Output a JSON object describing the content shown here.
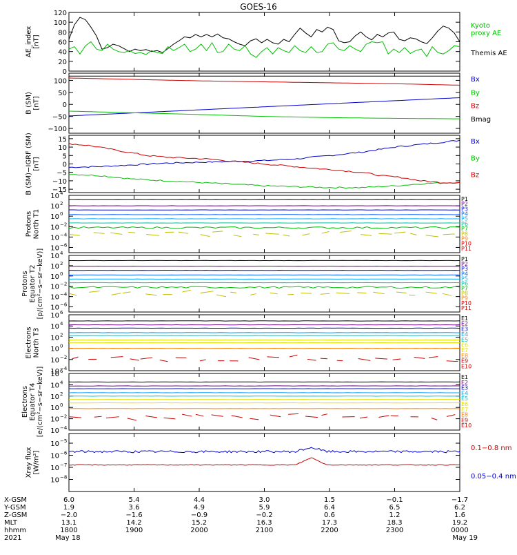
{
  "title": "GOES-16",
  "chart_data": [
    {
      "type": "line",
      "panel": "ae-index",
      "ylabel": [
        "AE_index",
        "[nT]"
      ],
      "ylim": [
        0,
        120
      ],
      "ytick_values": [
        0,
        20,
        40,
        60,
        80,
        100,
        120
      ],
      "ytick_labels": [
        "0",
        "20",
        "40",
        "60",
        "80",
        "100",
        "120"
      ],
      "legend": [
        {
          "label": "Kyoto",
          "color": "#00c000"
        },
        {
          "label": "proxy AE",
          "color": "#00c000"
        },
        {
          "label": "Themis AE",
          "color": "#000000"
        }
      ],
      "series": [
        {
          "name": "Themis AE",
          "color": "#000000",
          "values": [
            65,
            95,
            110,
            105,
            90,
            72,
            45,
            48,
            55,
            52,
            46,
            40,
            45,
            42,
            44,
            40,
            42,
            38,
            46,
            55,
            62,
            70,
            68,
            75,
            70,
            75,
            70,
            76,
            68,
            66,
            60,
            55,
            52,
            62,
            66,
            58,
            65,
            58,
            55,
            65,
            60,
            75,
            88,
            78,
            70,
            85,
            80,
            90,
            85,
            62,
            58,
            60,
            72,
            80,
            70,
            64,
            75,
            70,
            78,
            80,
            65,
            62,
            68,
            66,
            60,
            56,
            68,
            82,
            92,
            88,
            78,
            60
          ]
        },
        {
          "name": "Kyoto proxy AE",
          "color": "#00c000",
          "values": [
            45,
            50,
            35,
            52,
            60,
            45,
            42,
            55,
            45,
            40,
            38,
            42,
            36,
            38,
            34,
            42,
            38,
            36,
            50,
            42,
            48,
            55,
            40,
            45,
            55,
            42,
            58,
            38,
            40,
            55,
            45,
            42,
            52,
            35,
            28,
            40,
            48,
            35,
            48,
            42,
            38,
            52,
            42,
            38,
            50,
            38,
            40,
            55,
            58,
            45,
            42,
            52,
            45,
            40,
            55,
            60,
            58,
            60,
            35,
            45,
            38,
            48,
            36,
            42,
            45,
            30,
            50,
            38,
            35,
            42,
            52,
            50
          ]
        }
      ]
    },
    {
      "type": "line",
      "panel": "b-sm",
      "ylabel": [
        "B (SM)",
        "[nT]"
      ],
      "ylim": [
        -120,
        130
      ],
      "ytick_values": [
        -100,
        -50,
        0,
        50,
        100
      ],
      "ytick_labels": [
        "−100",
        "−50",
        "0",
        "50",
        "100"
      ],
      "legend": [
        {
          "label": "Bx",
          "color": "#0000cc"
        },
        {
          "label": "By",
          "color": "#00c000"
        },
        {
          "label": "Bz",
          "color": "#cc0000"
        },
        {
          "label": "Bmag",
          "color": "#000000"
        }
      ],
      "series": [
        {
          "name": "Bx",
          "color": "#0000cc",
          "x": [
            0,
            6
          ],
          "values": [
            -48,
            28
          ]
        },
        {
          "name": "By",
          "color": "#00c000",
          "x": [
            0,
            1,
            2,
            3,
            4,
            5,
            6
          ],
          "values": [
            -28,
            -35,
            -42,
            -50,
            -55,
            -58,
            -60
          ]
        },
        {
          "name": "Bz",
          "color": "#cc0000",
          "x": [
            0,
            1,
            2,
            3,
            4,
            5,
            6
          ],
          "values": [
            110,
            104,
            98,
            94,
            90,
            86,
            80
          ]
        },
        {
          "name": "Bmag",
          "color": "#000000",
          "x": [
            0,
            6
          ],
          "values": [
            118,
            118
          ]
        }
      ]
    },
    {
      "type": "line",
      "panel": "b-sm-minus-igrf",
      "ylabel": [
        "B (SM)−IGRF (SM)",
        "[nT]"
      ],
      "ylim": [
        -17,
        17
      ],
      "ytick_values": [
        -15,
        -10,
        -5,
        0,
        5,
        10,
        15
      ],
      "ytick_labels": [
        "−15",
        "−10",
        "−5",
        "0",
        "5",
        "10",
        "15"
      ],
      "legend": [
        {
          "label": "Bx",
          "color": "#0000cc"
        },
        {
          "label": "By",
          "color": "#00c000"
        },
        {
          "label": "Bz",
          "color": "#cc0000"
        }
      ],
      "series": [
        {
          "name": "Bx",
          "color": "#0000cc",
          "x": [
            0,
            0.5,
            1,
            1.5,
            2,
            2.5,
            3,
            3.5,
            4,
            4.5,
            5,
            5.5,
            6
          ],
          "values": [
            -2,
            -1.5,
            -0.5,
            0.5,
            1,
            1.5,
            2,
            3,
            5,
            7,
            10,
            12,
            14
          ]
        },
        {
          "name": "By",
          "color": "#00c000",
          "x": [
            0,
            0.5,
            1,
            1.5,
            2,
            2.5,
            3,
            3.5,
            4,
            4.5,
            5,
            5.5,
            6
          ],
          "values": [
            -6,
            -7,
            -9,
            -10,
            -11,
            -12,
            -13,
            -13.5,
            -14,
            -14,
            -13,
            -11.5,
            -11
          ]
        },
        {
          "name": "Bz",
          "color": "#cc0000",
          "x": [
            0,
            0.3,
            0.6,
            0.9,
            1.2,
            1.5,
            1.8,
            2.1,
            2.4,
            2.7,
            3,
            3.3,
            3.6,
            3.9,
            4.2,
            4.5,
            4.8,
            5.1,
            5.4,
            5.7,
            6
          ],
          "values": [
            12,
            11,
            9,
            7,
            5,
            4,
            3.5,
            3,
            2,
            1,
            0,
            -1,
            -2,
            -3,
            -4,
            -5,
            -7,
            -8,
            -10,
            -11,
            -11
          ]
        }
      ]
    },
    {
      "type": "line",
      "panel": "protons-north-t1",
      "ylabel": [
        "Protons",
        "North T1"
      ],
      "scale": "log",
      "ylim_exp": [
        -7,
        4
      ],
      "ytick_exponents": [
        -6,
        -4,
        -2,
        0,
        2,
        4
      ],
      "ytick_labels": [
        "10",
        "10",
        "10",
        "10",
        "10",
        "10"
      ],
      "ytick_superscripts": [
        "−6",
        "−4",
        "−2",
        "0",
        "2",
        "4"
      ],
      "legend": [
        {
          "label": "P1",
          "color": "#000000"
        },
        {
          "label": "P2",
          "color": "#6a0080"
        },
        {
          "label": "P3",
          "color": "#0000cc"
        },
        {
          "label": "P4",
          "color": "#0060ff"
        },
        {
          "label": "P5",
          "color": "#00b0ff"
        },
        {
          "label": "P6",
          "color": "#00c0a0"
        },
        {
          "label": "P7",
          "color": "#00c000"
        },
        {
          "label": "P8",
          "color": "#c0c000"
        },
        {
          "label": "P9",
          "color": "#ff8000"
        },
        {
          "label": "P10",
          "color": "#cc0000"
        },
        {
          "label": "P11",
          "color": "#cc0000"
        }
      ],
      "series_exp": [
        {
          "name": "P1",
          "color": "#000000",
          "value": 3.2
        },
        {
          "name": "P2",
          "color": "#6a0080",
          "value": 2.0
        },
        {
          "name": "P3",
          "color": "#0000cc",
          "value": 1.2
        },
        {
          "name": "P4",
          "color": "#0060ff",
          "value": 0.3
        },
        {
          "name": "P5",
          "color": "#00b0ff",
          "value": -0.5
        },
        {
          "name": "P6",
          "color": "#00c0a0",
          "value": -1.3
        },
        {
          "name": "P7",
          "color": "#00c000",
          "value": -2.2,
          "noisy": true
        },
        {
          "name": "P8",
          "color": "#c0c000",
          "value": -3.3,
          "sparse": true
        }
      ]
    },
    {
      "type": "line",
      "panel": "protons-equator-t2",
      "ylabel": [
        "Protons",
        "Equator T2",
        "[p/(cm²−s−sr−keV)]"
      ],
      "scale": "log",
      "ylim_exp": [
        -7,
        4
      ],
      "ytick_exponents": [
        -6,
        -4,
        -2,
        0,
        2,
        4
      ],
      "ytick_labels": [
        "10",
        "10",
        "10",
        "10",
        "10",
        "10"
      ],
      "ytick_superscripts": [
        "−6",
        "−4",
        "−2",
        "0",
        "2",
        "4"
      ],
      "legend": [
        {
          "label": "P1",
          "color": "#000000"
        },
        {
          "label": "P2",
          "color": "#6a0080"
        },
        {
          "label": "P3",
          "color": "#0000cc"
        },
        {
          "label": "P4",
          "color": "#0060ff"
        },
        {
          "label": "P5",
          "color": "#00b0ff"
        },
        {
          "label": "P6",
          "color": "#00c0a0"
        },
        {
          "label": "P7",
          "color": "#00c000"
        },
        {
          "label": "P8",
          "color": "#c0c000"
        },
        {
          "label": "P9",
          "color": "#ff8000"
        },
        {
          "label": "P10",
          "color": "#cc0000"
        },
        {
          "label": "P11",
          "color": "#cc0000"
        }
      ],
      "series_exp": [
        {
          "name": "P1",
          "color": "#000000",
          "value": 3.0
        },
        {
          "name": "P2",
          "color": "#6a0080",
          "value": 1.9
        },
        {
          "name": "P3",
          "color": "#0000cc",
          "value": 1.1
        },
        {
          "name": "P4",
          "color": "#0060ff",
          "value": 0.2
        },
        {
          "name": "P5",
          "color": "#00b0ff",
          "value": -0.6
        },
        {
          "name": "P6",
          "color": "#00c0a0",
          "value": -1.3
        },
        {
          "name": "P7",
          "color": "#00c000",
          "value": -2.2,
          "noisy": true
        },
        {
          "name": "P8",
          "color": "#c0c000",
          "value": -3.4,
          "sparse": true
        }
      ]
    },
    {
      "type": "line",
      "panel": "electrons-north-t3",
      "ylabel": [
        "Electrons",
        "North T3"
      ],
      "scale": "log",
      "ylim_exp": [
        -4,
        6
      ],
      "ytick_exponents": [
        -4,
        -2,
        0,
        2,
        4,
        6
      ],
      "ytick_labels": [
        "10",
        "10",
        "10",
        "10",
        "10",
        "10"
      ],
      "ytick_superscripts": [
        "−4",
        "−2",
        "0",
        "2",
        "4",
        "6"
      ],
      "legend": [
        {
          "label": "E1",
          "color": "#000000"
        },
        {
          "label": "E2",
          "color": "#6a0080"
        },
        {
          "label": "E3",
          "color": "#0000cc"
        },
        {
          "label": "E4",
          "color": "#00a0ff"
        },
        {
          "label": "E5",
          "color": "#00c0c0"
        },
        {
          "label": "E6",
          "color": "#e0e000"
        },
        {
          "label": "E7",
          "color": "#e0e000"
        },
        {
          "label": "E8",
          "color": "#ff8000"
        },
        {
          "label": "E9",
          "color": "#cc0000"
        },
        {
          "label": "E10",
          "color": "#cc0000"
        }
      ],
      "series_exp": [
        {
          "name": "E1",
          "color": "#000000",
          "value": 4.9
        },
        {
          "name": "E2",
          "color": "#6a0080",
          "value": 4.2
        },
        {
          "name": "E3",
          "color": "#0000cc",
          "value": 3.6
        },
        {
          "name": "E4",
          "color": "#00a0ff",
          "value": 2.8
        },
        {
          "name": "E5",
          "color": "#00c0c0",
          "value": 2.3
        },
        {
          "name": "E6",
          "color": "#e0e000",
          "value": 1.5
        },
        {
          "name": "E7",
          "color": "#e0e000",
          "value": 1.0
        },
        {
          "name": "E8",
          "color": "#ff8000",
          "value": 0.0
        },
        {
          "name": "E9",
          "color": "#cc0000",
          "value": -1.9,
          "sparse": true
        }
      ]
    },
    {
      "type": "line",
      "panel": "electrons-equator-t4",
      "ylabel": [
        "Electrons",
        "Equator T4",
        "[e/(cm²−s−sr−keV)]"
      ],
      "scale": "log",
      "ylim_exp": [
        -4,
        6
      ],
      "ytick_exponents": [
        -4,
        -2,
        0,
        2,
        4,
        6
      ],
      "ytick_labels": [
        "10",
        "10",
        "10",
        "10",
        "10",
        "10"
      ],
      "ytick_superscripts": [
        "−4",
        "−2",
        "0",
        "2",
        "4",
        "6"
      ],
      "legend": [
        {
          "label": "E1",
          "color": "#000000"
        },
        {
          "label": "E2",
          "color": "#6a0080"
        },
        {
          "label": "E3",
          "color": "#0000cc"
        },
        {
          "label": "E4",
          "color": "#00a0ff"
        },
        {
          "label": "E5",
          "color": "#00c0c0"
        },
        {
          "label": "E6",
          "color": "#e0e000"
        },
        {
          "label": "E7",
          "color": "#e0e000"
        },
        {
          "label": "E8",
          "color": "#ff8000"
        },
        {
          "label": "E9",
          "color": "#cc0000"
        },
        {
          "label": "E10",
          "color": "#cc0000"
        }
      ],
      "series_exp": [
        {
          "name": "E1",
          "color": "#000000",
          "value": 4.5
        },
        {
          "name": "E2",
          "color": "#6a0080",
          "value": 3.8
        },
        {
          "name": "E3",
          "color": "#0000cc",
          "value": 3.3
        },
        {
          "name": "E4",
          "color": "#00a0ff",
          "value": 2.6
        },
        {
          "name": "E5",
          "color": "#00c0c0",
          "value": 2.0
        },
        {
          "name": "E6",
          "color": "#e0e000",
          "value": 1.4
        },
        {
          "name": "E7",
          "color": "#e0e000",
          "value": 0.8
        },
        {
          "name": "E8",
          "color": "#ff8000",
          "value": -0.2
        },
        {
          "name": "E9",
          "color": "#cc0000",
          "value": -1.6,
          "sparse": true
        }
      ]
    },
    {
      "type": "line",
      "panel": "xray-flux",
      "ylabel": [
        "Xray flux",
        "[W/m²]"
      ],
      "scale": "log",
      "ylim_exp": [
        -9,
        -8.5
      ],
      "ytick_exponents": [
        -8,
        -7,
        -6,
        -5
      ],
      "ytick_labels": [
        "10",
        "10",
        "10",
        "10"
      ],
      "ytick_superscripts": [
        "−8",
        "−7",
        "−6",
        "−5"
      ],
      "legend": [
        {
          "label": "0.1−0.8 nm",
          "color": "#cc0000"
        },
        {
          "label": "0.05−0.4 nm",
          "color": "#0000cc"
        }
      ],
      "series": [
        {
          "name": "0.1−0.8 nm",
          "color": "#cc0000",
          "value": -6.8,
          "flare_at": 0.62,
          "flare_peak": -6.2
        },
        {
          "name": "0.05−0.4 nm",
          "color": "#0000cc",
          "value": -5.7,
          "flare_at": 0.62,
          "flare_peak": -5.35
        }
      ]
    }
  ],
  "x_axis": {
    "rows": [
      "X-GSM",
      "Y-GSM",
      "Z-GSM",
      "MLT",
      "hhmm",
      "2021"
    ],
    "columns": [
      [
        "6.0",
        "1.9",
        "−2.0",
        "13.1",
        "1800",
        "May 18"
      ],
      [
        "5.4",
        "3.6",
        "−1.6",
        "14.2",
        "1900",
        ""
      ],
      [
        "4.4",
        "4.9",
        "−0.9",
        "15.2",
        "2000",
        ""
      ],
      [
        "3.0",
        "5.9",
        "−0.2",
        "16.3",
        "2100",
        ""
      ],
      [
        "1.5",
        "6.4",
        "0.6",
        "17.3",
        "2200",
        ""
      ],
      [
        "−0.1",
        "6.5",
        "1.2",
        "18.3",
        "2300",
        ""
      ],
      [
        "−1.7",
        "6.2",
        "1.6",
        "19.2",
        "0000",
        "May 19"
      ]
    ]
  }
}
